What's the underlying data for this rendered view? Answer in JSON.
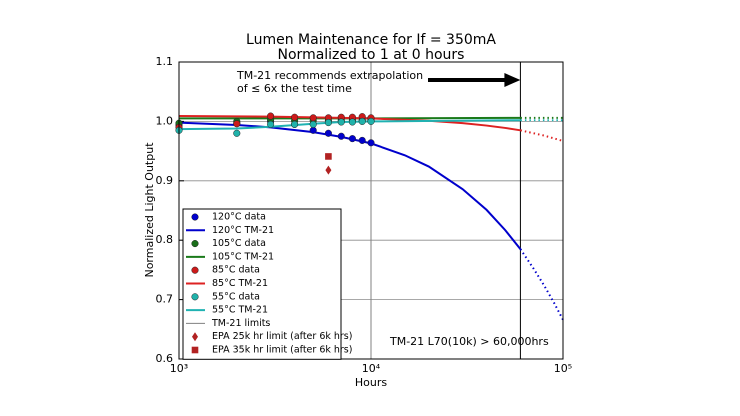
{
  "chart_data": {
    "type": "scatter",
    "title": "Lumen Maintenance for If = 350mA",
    "subtitle": "Normalized to 1 at 0 hours",
    "x_label": "Hours",
    "y_label": "Normalized Light Output",
    "log_x": true,
    "grid": true,
    "xlim": [
      1000,
      100000
    ],
    "xticks": [
      {
        "value": 1000,
        "label": "10³"
      },
      {
        "value": 10000,
        "label": "10⁴"
      },
      {
        "value": 100000,
        "label": "10⁵"
      }
    ],
    "ylim": [
      0.6,
      1.1
    ],
    "yticks": [
      0.6,
      0.7,
      0.8,
      0.9,
      {
        "value": 1,
        "label": "1.0"
      },
      1.1
    ],
    "legend": "lower left",
    "annotations": [
      "TM-21 recommends extrapolation",
      "of ≤ 6x the test time",
      "TM-21 L70(10k) > 60,000hrs"
    ],
    "series": [
      {
        "name": "120°C data",
        "kind": "points",
        "marker": "circle",
        "color": "#0000cc",
        "x": [
          1000,
          2000,
          3000,
          4000,
          5000,
          6000,
          7000,
          8000,
          9000,
          10000
        ],
        "values": [
          0.994,
          0.997,
          1.0,
          0.995,
          0.985,
          0.98,
          0.975,
          0.971,
          0.968,
          0.964
        ]
      },
      {
        "name": "120°C TM-21",
        "kind": "line",
        "color": "#0000cc",
        "x": [
          1000,
          2000,
          3000,
          5000,
          7000,
          10000,
          15000,
          20000,
          30000,
          40000,
          50000,
          60000,
          70000,
          80000,
          90000,
          100000
        ],
        "values": [
          0.998,
          0.994,
          0.99,
          0.982,
          0.974,
          0.963,
          0.943,
          0.924,
          0.886,
          0.851,
          0.817,
          0.785,
          0.753,
          0.723,
          0.694,
          0.666
        ]
      },
      {
        "name": "105°C data",
        "kind": "points",
        "marker": "circle",
        "color": "#1a6e1a",
        "x": [
          1000,
          2000,
          3000,
          4000,
          5000,
          6000,
          7000,
          8000,
          9000,
          10000
        ],
        "values": [
          0.997,
          1.0,
          1.003,
          1.001,
          1.001,
          1.001,
          1.002,
          1.002,
          1.002,
          1.002
        ]
      },
      {
        "name": "105°C TM-21",
        "kind": "line",
        "color": "#1a7a1a",
        "x": [
          1000,
          10000,
          60000,
          100000
        ],
        "values": [
          1.005,
          1.005,
          1.006,
          1.006
        ]
      },
      {
        "name": "85°C data",
        "kind": "points",
        "marker": "circle",
        "color": "#cc1a1a",
        "x": [
          1000,
          2000,
          3000,
          4000,
          5000,
          6000,
          7000,
          8000,
          9000,
          10000
        ],
        "values": [
          0.99,
          0.996,
          1.009,
          1.007,
          1.006,
          1.006,
          1.007,
          1.007,
          1.008,
          1.006
        ]
      },
      {
        "name": "85°C TM-21",
        "kind": "line",
        "color": "#dd2222",
        "x": [
          1000,
          3000,
          10000,
          20000,
          30000,
          40000,
          50000,
          60000,
          80000,
          100000
        ],
        "values": [
          1.009,
          1.008,
          1.005,
          1.001,
          0.997,
          0.993,
          0.989,
          0.985,
          0.976,
          0.967
        ]
      },
      {
        "name": "55°C data",
        "kind": "points",
        "marker": "circle",
        "color": "#20b2aa",
        "x": [
          1000,
          2000,
          3000,
          4000,
          5000,
          6000,
          7000,
          8000,
          9000,
          10000
        ],
        "values": [
          0.985,
          0.98,
          0.995,
          0.995,
          0.995,
          0.998,
          0.999,
          0.999,
          1.0,
          1.0
        ]
      },
      {
        "name": "55°C TM-21",
        "kind": "line",
        "color": "#20b2b2",
        "x": [
          1000,
          2000,
          3000,
          5000,
          7000,
          10000,
          60000,
          100000
        ],
        "values": [
          0.987,
          0.988,
          0.991,
          0.996,
          0.999,
          1.0,
          1.002,
          1.002
        ]
      },
      {
        "name": "TM-21 limits",
        "kind": "vlines",
        "color": "#808080",
        "colors": [
          "#808080",
          "#000000"
        ],
        "x": [
          10000,
          60000
        ]
      },
      {
        "name": "EPA 25k hr limit (after 6k hrs)",
        "kind": "points",
        "marker": "diamond",
        "color": "#b22222",
        "x": [
          6000
        ],
        "values": [
          0.918
        ]
      },
      {
        "name": "EPA 35k hr limit (after 6k hrs)",
        "kind": "points",
        "marker": "square",
        "color": "#b22222",
        "x": [
          6000
        ],
        "values": [
          0.941
        ]
      }
    ]
  }
}
